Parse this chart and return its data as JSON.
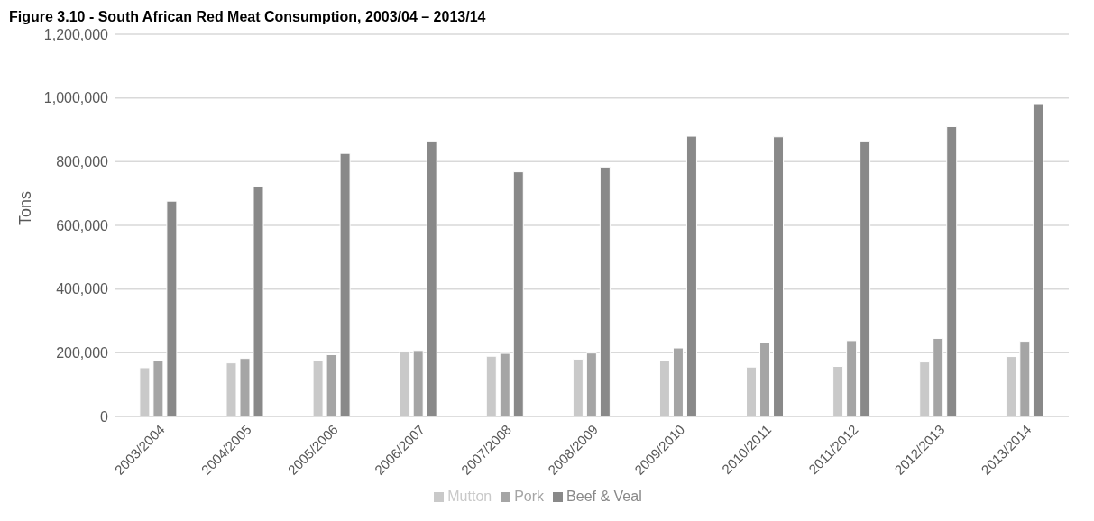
{
  "chart_data": {
    "type": "bar",
    "title": "Figure 3.10 - South African Red Meat Consumption, 2003/04 – 2013/14",
    "ylabel": "Tons",
    "categories": [
      "2003/2004",
      "2004/2005",
      "2005/2006",
      "2006/2007",
      "2007/2008",
      "2008/2009",
      "2009/2010",
      "2010/2011",
      "2011/2012",
      "2012/2013",
      "2013/2014"
    ],
    "series": [
      {
        "name": "Mutton",
        "color": "#c9c9c9",
        "values": [
          153000,
          168000,
          177000,
          204000,
          189000,
          180000,
          174000,
          155000,
          157000,
          171000,
          188000
        ]
      },
      {
        "name": "Pork",
        "color": "#a5a5a5",
        "values": [
          174000,
          182000,
          194000,
          207000,
          198000,
          199000,
          215000,
          232000,
          238000,
          245000,
          236000
        ]
      },
      {
        "name": "Beef & Veal",
        "color": "#898989",
        "values": [
          676000,
          723000,
          826000,
          865000,
          768000,
          783000,
          880000,
          878000,
          865000,
          910000,
          982000
        ]
      }
    ],
    "ylim": [
      0,
      1200000
    ],
    "yticks": [
      0,
      {
        "value": 200000,
        "label": "200,000"
      },
      {
        "value": 400000,
        "label": "400,000"
      },
      {
        "value": 600000,
        "label": "600,000"
      },
      {
        "value": 800000,
        "label": "800,000"
      },
      {
        "value": 1000000,
        "label": "1,000,000"
      },
      {
        "value": 1200000,
        "label": "1,200,000"
      }
    ],
    "grid": "y",
    "legend": "bottom"
  }
}
